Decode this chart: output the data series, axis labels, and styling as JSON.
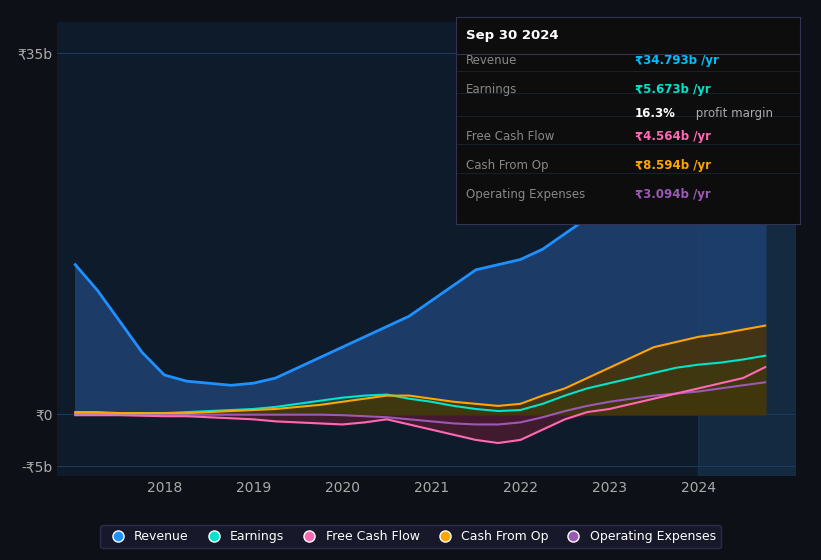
{
  "background_color": "#0d1117",
  "plot_bg_color": "#0d1b2a",
  "grid_color": "#1e3a5f",
  "title_box": {
    "date": "Sep 30 2024",
    "rows": [
      {
        "label": "Revenue",
        "value": "₹34.793b /yr",
        "value_color": "#00bfff"
      },
      {
        "label": "Earnings",
        "value": "₹5.673b /yr",
        "value_color": "#00e5cc"
      },
      {
        "label": "",
        "value": "16.3% profit margin",
        "value_color": "#ffffff"
      },
      {
        "label": "Free Cash Flow",
        "value": "₹4.564b /yr",
        "value_color": "#ff69b4"
      },
      {
        "label": "Cash From Op",
        "value": "₹8.594b /yr",
        "value_color": "#ffa500"
      },
      {
        "label": "Operating Expenses",
        "value": "₹3.094b /yr",
        "value_color": "#9b59b6"
      }
    ]
  },
  "series": {
    "Revenue": {
      "color": "#1e90ff",
      "fill_color": "#1e3f6e",
      "x": [
        2017.0,
        2017.25,
        2017.5,
        2017.75,
        2018.0,
        2018.25,
        2018.5,
        2018.75,
        2019.0,
        2019.25,
        2019.5,
        2019.75,
        2020.0,
        2020.25,
        2020.5,
        2020.75,
        2021.0,
        2021.25,
        2021.5,
        2021.75,
        2022.0,
        2022.25,
        2022.5,
        2022.75,
        2023.0,
        2023.25,
        2023.5,
        2023.75,
        2024.0,
        2024.25,
        2024.5,
        2024.75
      ],
      "y": [
        14.5,
        12.0,
        9.0,
        6.0,
        3.8,
        3.2,
        3.0,
        2.8,
        3.0,
        3.5,
        4.5,
        5.5,
        6.5,
        7.5,
        8.5,
        9.5,
        11.0,
        12.5,
        14.0,
        14.5,
        15.0,
        16.0,
        17.5,
        19.0,
        21.0,
        23.5,
        26.0,
        28.5,
        30.0,
        31.5,
        33.0,
        34.8
      ]
    },
    "Earnings": {
      "color": "#00e5cc",
      "fill_color": "#004d44",
      "x": [
        2017.0,
        2017.25,
        2017.5,
        2017.75,
        2018.0,
        2018.25,
        2018.5,
        2018.75,
        2019.0,
        2019.25,
        2019.5,
        2019.75,
        2020.0,
        2020.25,
        2020.5,
        2020.75,
        2021.0,
        2021.25,
        2021.5,
        2021.75,
        2022.0,
        2022.25,
        2022.5,
        2022.75,
        2023.0,
        2023.25,
        2023.5,
        2023.75,
        2024.0,
        2024.25,
        2024.5,
        2024.75
      ],
      "y": [
        0.1,
        0.1,
        0.1,
        0.1,
        0.1,
        0.2,
        0.3,
        0.4,
        0.5,
        0.7,
        1.0,
        1.3,
        1.6,
        1.8,
        1.9,
        1.5,
        1.2,
        0.8,
        0.5,
        0.3,
        0.4,
        1.0,
        1.8,
        2.5,
        3.0,
        3.5,
        4.0,
        4.5,
        4.8,
        5.0,
        5.3,
        5.67
      ]
    },
    "Free Cash Flow": {
      "color": "#ff69b4",
      "fill_color": "#4d1a2e",
      "x": [
        2017.0,
        2017.25,
        2017.5,
        2017.75,
        2018.0,
        2018.25,
        2018.5,
        2018.75,
        2019.0,
        2019.25,
        2019.5,
        2019.75,
        2020.0,
        2020.25,
        2020.5,
        2020.75,
        2021.0,
        2021.25,
        2021.5,
        2021.75,
        2022.0,
        2022.25,
        2022.5,
        2022.75,
        2023.0,
        2023.25,
        2023.5,
        2023.75,
        2024.0,
        2024.25,
        2024.5,
        2024.75
      ],
      "y": [
        -0.1,
        -0.1,
        -0.1,
        -0.15,
        -0.2,
        -0.2,
        -0.3,
        -0.4,
        -0.5,
        -0.7,
        -0.8,
        -0.9,
        -1.0,
        -0.8,
        -0.5,
        -1.0,
        -1.5,
        -2.0,
        -2.5,
        -2.8,
        -2.5,
        -1.5,
        -0.5,
        0.2,
        0.5,
        1.0,
        1.5,
        2.0,
        2.5,
        3.0,
        3.5,
        4.56
      ]
    },
    "Cash From Op": {
      "color": "#ffa500",
      "fill_color": "#4d3300",
      "x": [
        2017.0,
        2017.25,
        2017.5,
        2017.75,
        2018.0,
        2018.25,
        2018.5,
        2018.75,
        2019.0,
        2019.25,
        2019.5,
        2019.75,
        2020.0,
        2020.25,
        2020.5,
        2020.75,
        2021.0,
        2021.25,
        2021.5,
        2021.75,
        2022.0,
        2022.25,
        2022.5,
        2022.75,
        2023.0,
        2023.25,
        2023.5,
        2023.75,
        2024.0,
        2024.25,
        2024.5,
        2024.75
      ],
      "y": [
        0.2,
        0.2,
        0.1,
        0.1,
        0.1,
        0.1,
        0.2,
        0.3,
        0.4,
        0.5,
        0.7,
        0.9,
        1.2,
        1.5,
        1.8,
        1.8,
        1.5,
        1.2,
        1.0,
        0.8,
        1.0,
        1.8,
        2.5,
        3.5,
        4.5,
        5.5,
        6.5,
        7.0,
        7.5,
        7.8,
        8.2,
        8.59
      ]
    },
    "Operating Expenses": {
      "color": "#9b59b6",
      "fill_color": "#2d1040",
      "x": [
        2017.0,
        2017.25,
        2017.5,
        2017.75,
        2018.0,
        2018.25,
        2018.5,
        2018.75,
        2019.0,
        2019.25,
        2019.5,
        2019.75,
        2020.0,
        2020.25,
        2020.5,
        2020.75,
        2021.0,
        2021.25,
        2021.5,
        2021.75,
        2022.0,
        2022.25,
        2022.5,
        2022.75,
        2023.0,
        2023.25,
        2023.5,
        2023.75,
        2024.0,
        2024.25,
        2024.5,
        2024.75
      ],
      "y": [
        -0.05,
        -0.05,
        -0.05,
        -0.05,
        -0.05,
        -0.05,
        -0.05,
        -0.05,
        -0.05,
        -0.05,
        -0.05,
        -0.05,
        -0.1,
        -0.2,
        -0.3,
        -0.5,
        -0.7,
        -0.9,
        -1.0,
        -1.0,
        -0.8,
        -0.3,
        0.3,
        0.8,
        1.2,
        1.5,
        1.8,
        2.0,
        2.2,
        2.5,
        2.8,
        3.09
      ]
    }
  },
  "ylim": [
    -6,
    38
  ],
  "xlim": [
    2016.8,
    2025.1
  ],
  "yticks": [
    -5,
    0,
    35
  ],
  "ytick_labels": [
    "-₹5b",
    "₹0",
    "₹35b"
  ],
  "xticks": [
    2018,
    2019,
    2020,
    2021,
    2022,
    2023,
    2024
  ],
  "highlight_x_start": 2024.0,
  "legend_items": [
    {
      "label": "Revenue",
      "color": "#1e90ff"
    },
    {
      "label": "Earnings",
      "color": "#00e5cc"
    },
    {
      "label": "Free Cash Flow",
      "color": "#ff69b4"
    },
    {
      "label": "Cash From Op",
      "color": "#ffa500"
    },
    {
      "label": "Operating Expenses",
      "color": "#9b59b6"
    }
  ]
}
